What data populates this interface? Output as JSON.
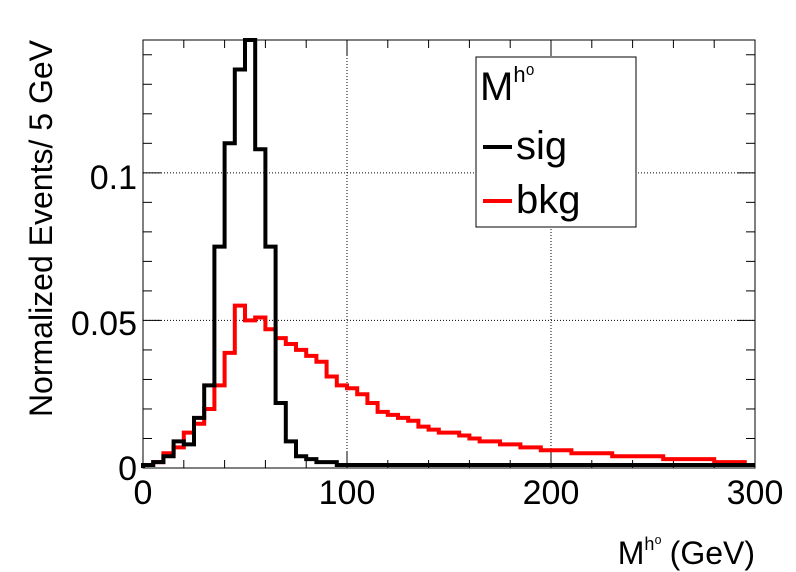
{
  "chart_data": {
    "type": "line",
    "histogram": true,
    "title": "",
    "xlabel": "M",
    "xlabel_sup": "h⁰",
    "xlabel_unit": "(GeV)",
    "ylabel": "Normalized Events/ 5 GeV",
    "xlim": [
      0,
      300
    ],
    "ylim": [
      0,
      0.145
    ],
    "bin_width": 5,
    "grid": true,
    "x_ticks": [
      "0",
      "100",
      "200",
      "300"
    ],
    "x_tick_values": [
      0,
      100,
      200,
      300
    ],
    "y_ticks": [
      "0",
      "0.05",
      "0.1"
    ],
    "y_tick_values": [
      0,
      0.05,
      0.1
    ],
    "legend": {
      "placement": "top-right",
      "header": "M",
      "header_sup": "h⁰"
    },
    "series": [
      {
        "name": "sig",
        "color": "#000000",
        "values": [
          0.001,
          0.002,
          0.004,
          0.009,
          0.008,
          0.017,
          0.028,
          0.075,
          0.11,
          0.135,
          0.145,
          0.108,
          0.075,
          0.022,
          0.009,
          0.004,
          0.003,
          0.002,
          0.002,
          0.001,
          0.001,
          0.001,
          0.001,
          0.001,
          0.001,
          0.001,
          0.001,
          0.001,
          0.001,
          0.001,
          0.001,
          0.001,
          0.001,
          0.001,
          0.001,
          0.001,
          0.001,
          0.001,
          0.001,
          0.001,
          0.001,
          0.001,
          0.001,
          0.001,
          0.001,
          0.001,
          0.001,
          0.001,
          0.001,
          0.001,
          0.001,
          0.001,
          0.001,
          0.001,
          0.001,
          0.001,
          0.001,
          0.001,
          0.001,
          0.001
        ]
      },
      {
        "name": "bkg",
        "color": "#ff0000",
        "values": [
          0.001,
          0.002,
          0.005,
          0.007,
          0.012,
          0.015,
          0.02,
          0.028,
          0.039,
          0.055,
          0.05,
          0.051,
          0.047,
          0.044,
          0.042,
          0.04,
          0.038,
          0.036,
          0.031,
          0.028,
          0.027,
          0.025,
          0.022,
          0.019,
          0.018,
          0.017,
          0.016,
          0.014,
          0.013,
          0.012,
          0.012,
          0.011,
          0.01,
          0.009,
          0.009,
          0.008,
          0.008,
          0.007,
          0.007,
          0.006,
          0.006,
          0.006,
          0.005,
          0.005,
          0.005,
          0.005,
          0.004,
          0.004,
          0.004,
          0.004,
          0.004,
          0.003,
          0.003,
          0.003,
          0.003,
          0.003,
          0.002,
          0.002,
          0.002,
          0.001
        ]
      }
    ]
  }
}
